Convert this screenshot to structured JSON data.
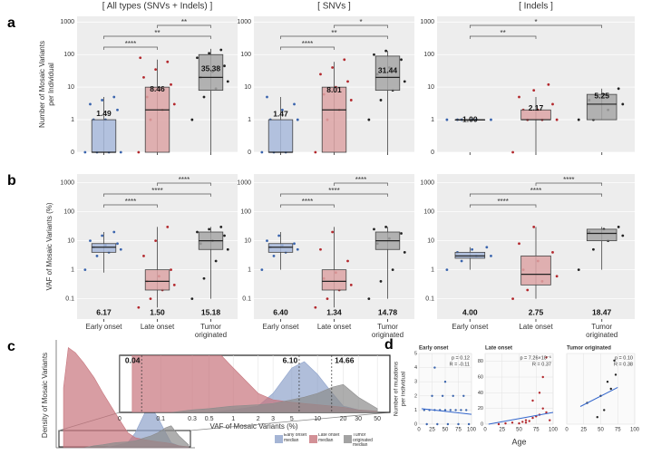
{
  "chart_data": [
    {
      "type": "box",
      "panel": "a",
      "title": "[ All types (SNVs + Indels) ]",
      "y_label": [
        "Number of Mosaic Variants",
        "per Individual"
      ],
      "yscale": "pseudo_log",
      "ylim": [
        0,
        1500
      ],
      "yticks": [
        0,
        1,
        10,
        100,
        1000
      ],
      "boxes": [
        {
          "color": "#3a64ad",
          "fill": "#a7b8db",
          "stats": [
            0,
            0,
            0,
            1,
            5
          ],
          "mean": 1.49,
          "points": [
            0,
            0,
            0,
            0,
            1,
            1,
            2,
            3,
            4,
            5
          ]
        },
        {
          "color": "#b3282d",
          "fill": "#dca3a5",
          "stats": [
            0,
            0,
            2,
            10,
            70
          ],
          "mean": 8.46,
          "points": [
            0,
            1,
            2,
            3,
            5,
            8,
            12,
            20,
            35,
            60,
            80
          ]
        },
        {
          "color": "#222222",
          "fill": "#a6a6a6",
          "stats": [
            0,
            8,
            20,
            100,
            150
          ],
          "mean": 35.38,
          "points": [
            1,
            5,
            9,
            15,
            20,
            30,
            45,
            80,
            110,
            140
          ]
        }
      ],
      "comparisons": [
        {
          "groups": [
            1,
            2
          ],
          "label": "**"
        },
        {
          "groups": [
            0,
            2
          ],
          "label": "**"
        },
        {
          "groups": [
            0,
            1
          ],
          "label": "****"
        }
      ]
    },
    {
      "type": "box",
      "title": "[ SNVs ]",
      "yscale": "pseudo_log",
      "ylim": [
        0,
        1500
      ],
      "yticks": [
        0,
        1,
        10,
        100,
        1000
      ],
      "boxes": [
        {
          "color": "#3a64ad",
          "fill": "#a7b8db",
          "stats": [
            0,
            0,
            0,
            1,
            5
          ],
          "mean": 1.47,
          "points": [
            0,
            0,
            0,
            1,
            1,
            2,
            3,
            5
          ]
        },
        {
          "color": "#b3282d",
          "fill": "#dca3a5",
          "stats": [
            0,
            0,
            2,
            10,
            60
          ],
          "mean": 8.01,
          "points": [
            0,
            1,
            2,
            4,
            6,
            10,
            15,
            25,
            40,
            70
          ]
        },
        {
          "color": "#222222",
          "fill": "#a6a6a6",
          "stats": [
            0,
            8,
            20,
            90,
            130
          ],
          "mean": 31.44,
          "points": [
            1,
            4,
            8,
            15,
            25,
            40,
            70,
            100,
            130
          ]
        }
      ],
      "comparisons": [
        {
          "groups": [
            1,
            2
          ],
          "label": "*"
        },
        {
          "groups": [
            0,
            2
          ],
          "label": "**"
        },
        {
          "groups": [
            0,
            1
          ],
          "label": "****"
        }
      ]
    },
    {
      "type": "box",
      "title": "[ Indels ]",
      "yscale": "pseudo_log",
      "ylim": [
        0,
        1500
      ],
      "yticks": [
        0,
        1,
        10,
        100,
        1000
      ],
      "boxes": [
        {
          "color": "#3a64ad",
          "fill": "#a7b8db",
          "stats": [
            1,
            1,
            1,
            1,
            1
          ],
          "mean": 1,
          "mean_label": "1.00",
          "points": [
            1,
            1,
            1,
            1,
            1,
            1
          ]
        },
        {
          "color": "#b3282d",
          "fill": "#dca3a5",
          "stats": [
            0,
            1,
            1,
            2,
            5
          ],
          "mean": 2.17,
          "points": [
            0,
            1,
            1,
            1,
            2,
            2,
            3,
            5,
            8,
            12
          ]
        },
        {
          "color": "#222222",
          "fill": "#a6a6a6",
          "stats": [
            1,
            1,
            3,
            6,
            9
          ],
          "mean": 5.25,
          "points": [
            1,
            1,
            2,
            3,
            4,
            6,
            9
          ]
        }
      ],
      "comparisons": [
        {
          "groups": [
            0,
            2
          ],
          "label": "*"
        },
        {
          "groups": [
            0,
            1
          ],
          "label": "**"
        }
      ]
    },
    {
      "type": "box",
      "panel": "b",
      "y_label": [
        "VAF of Mosaic Variants (%)"
      ],
      "yscale": "log",
      "ylim": [
        0.02,
        2000
      ],
      "yticks": [
        0.1,
        1,
        10,
        100,
        1000
      ],
      "categories": [
        "Early onset",
        "Late onset",
        "Tumor originated"
      ],
      "boxes": [
        {
          "color": "#3a64ad",
          "fill": "#a7b8db",
          "stats": [
            0.8,
            4,
            6,
            8,
            20
          ],
          "mean": 6.17,
          "points": [
            1,
            3,
            4,
            5,
            6,
            7,
            8,
            10,
            15,
            20
          ]
        },
        {
          "color": "#b3282d",
          "fill": "#dca3a5",
          "stats": [
            0.05,
            0.2,
            0.4,
            1,
            30
          ],
          "mean": 1.5,
          "mean_label": "1.50",
          "points": [
            0.05,
            0.1,
            0.2,
            0.3,
            0.4,
            0.6,
            1,
            3,
            10,
            30
          ]
        },
        {
          "color": "#222222",
          "fill": "#a6a6a6",
          "stats": [
            0.1,
            5,
            10,
            20,
            30
          ],
          "mean": 15.18,
          "points": [
            0.1,
            0.5,
            2,
            5,
            8,
            10,
            15,
            20,
            25,
            30
          ]
        }
      ],
      "comparisons": [
        {
          "groups": [
            1,
            2
          ],
          "label": "****"
        },
        {
          "groups": [
            0,
            2
          ],
          "label": "****"
        },
        {
          "groups": [
            0,
            1
          ],
          "label": "****"
        }
      ]
    },
    {
      "type": "box",
      "yscale": "log",
      "ylim": [
        0.02,
        2000
      ],
      "yticks": [
        0.1,
        1,
        10,
        100,
        1000
      ],
      "categories": [
        "Early onset",
        "Late onset",
        "Tumor originated"
      ],
      "boxes": [
        {
          "color": "#3a64ad",
          "fill": "#a7b8db",
          "stats": [
            1,
            4,
            6,
            8,
            20
          ],
          "mean": 6.4,
          "mean_label": "6.40",
          "points": [
            1,
            3,
            4,
            5,
            6,
            7,
            8,
            10,
            15
          ]
        },
        {
          "color": "#b3282d",
          "fill": "#dca3a5",
          "stats": [
            0.05,
            0.2,
            0.4,
            1,
            30
          ],
          "mean": 1.34,
          "points": [
            0.05,
            0.1,
            0.2,
            0.3,
            0.5,
            0.8,
            2,
            5,
            20
          ]
        },
        {
          "color": "#222222",
          "fill": "#a6a6a6",
          "stats": [
            0.1,
            5,
            10,
            20,
            30
          ],
          "mean": 14.78,
          "points": [
            0.1,
            0.4,
            1,
            4,
            8,
            12,
            18,
            25,
            30
          ]
        }
      ],
      "comparisons": [
        {
          "groups": [
            1,
            2
          ],
          "label": "****"
        },
        {
          "groups": [
            0,
            2
          ],
          "label": "****"
        },
        {
          "groups": [
            0,
            1
          ],
          "label": "****"
        }
      ]
    },
    {
      "type": "box",
      "yscale": "log",
      "ylim": [
        0.02,
        2000
      ],
      "yticks": [
        0.1,
        1,
        10,
        100,
        1000
      ],
      "categories": [
        "Early onset",
        "Late onset",
        "Tumor originated"
      ],
      "boxes": [
        {
          "color": "#3a64ad",
          "fill": "#a7b8db",
          "stats": [
            1,
            2.5,
            3,
            4,
            6
          ],
          "mean": 4,
          "mean_label": "4.00",
          "points": [
            1,
            2,
            3,
            3,
            4,
            5,
            6
          ]
        },
        {
          "color": "#b3282d",
          "fill": "#dca3a5",
          "stats": [
            0.1,
            0.3,
            0.7,
            3,
            30
          ],
          "mean": 2.75,
          "points": [
            0.1,
            0.2,
            0.4,
            0.6,
            1,
            2,
            4,
            8,
            30
          ]
        },
        {
          "color": "#222222",
          "fill": "#a6a6a6",
          "stats": [
            1,
            10,
            18,
            25,
            30
          ],
          "mean": 18.47,
          "points": [
            1,
            5,
            10,
            15,
            20,
            25,
            30
          ]
        }
      ],
      "comparisons": [
        {
          "groups": [
            1,
            2
          ],
          "label": "****"
        },
        {
          "groups": [
            0,
            2
          ],
          "label": "****"
        },
        {
          "groups": [
            0,
            1
          ],
          "label": "****"
        }
      ]
    },
    {
      "type": "density",
      "panel": "c",
      "y_label": "Density of Mosaic Variants",
      "x_label": "VAF of Mosaic Variants (%)",
      "xscale": "pseudo_log",
      "xlim": [
        0,
        70
      ],
      "xticks": [
        0,
        0.1,
        0.3,
        0.5,
        1,
        2,
        3,
        5,
        10,
        20,
        30,
        50
      ],
      "ylim": [
        0,
        1.05
      ],
      "zoom_ylim": [
        0,
        0.45
      ],
      "x": [
        0.02,
        0.04,
        0.08,
        0.15,
        0.3,
        0.5,
        1,
        2,
        3,
        5,
        7,
        10,
        15,
        20,
        30,
        50
      ],
      "series": [
        {
          "name": "Early onset median",
          "color": "#8ea2cb",
          "median": 6.1,
          "median_label": "6.10",
          "values": [
            0,
            0,
            0,
            0,
            0,
            0,
            0.02,
            0.05,
            0.15,
            0.35,
            0.4,
            0.3,
            0.15,
            0.05,
            0.02,
            0
          ]
        },
        {
          "name": "Late onset median",
          "color": "#c7747c",
          "median": 0.04,
          "median_label": "0.04",
          "values": [
            0.6,
            1,
            0.95,
            0.85,
            0.7,
            0.55,
            0.35,
            0.15,
            0.1,
            0.08,
            0.07,
            0.06,
            0.05,
            0.04,
            0.02,
            0.01
          ]
        },
        {
          "name": "Tumor originated median",
          "color": "#8c8c8c",
          "median": 14.66,
          "median_label": "14.66",
          "values": [
            0,
            0,
            0,
            0,
            0.02,
            0.03,
            0.05,
            0.06,
            0.07,
            0.1,
            0.12,
            0.15,
            0.2,
            0.22,
            0.12,
            0.03
          ]
        }
      ]
    },
    {
      "type": "scatter",
      "panel": "d",
      "title": "Early onset",
      "y_label": [
        "Number of mutations",
        "per individual"
      ],
      "xlim": [
        0,
        100
      ],
      "xticks": [
        0,
        25,
        50,
        75,
        100
      ],
      "ylim": [
        0,
        5
      ],
      "yticks": [
        0,
        1,
        2,
        3,
        4,
        5
      ],
      "color": "#3a64ad",
      "x": [
        10,
        20,
        30,
        40,
        50,
        60,
        70,
        80,
        90,
        15,
        35,
        55,
        75,
        95,
        25,
        45,
        65,
        85,
        50,
        30
      ],
      "y": [
        1,
        1,
        1,
        1,
        1,
        1,
        1,
        1,
        1,
        0,
        0,
        0,
        0,
        0,
        2,
        2,
        2,
        2,
        3,
        4
      ],
      "fit": {
        "x": [
          5,
          100
        ],
        "y": [
          1.1,
          0.7
        ]
      },
      "annotation": [
        "p = 0.12",
        "R = -0.11"
      ]
    },
    {
      "type": "scatter",
      "title": "Late onset",
      "x_label": "Age",
      "xlim": [
        0,
        100
      ],
      "xticks": [
        0,
        25,
        50,
        75,
        100
      ],
      "ylim": [
        0,
        90
      ],
      "yticks": [
        0,
        20,
        40,
        60,
        80
      ],
      "color": "#b3282d",
      "x": [
        20,
        30,
        40,
        50,
        55,
        60,
        65,
        70,
        75,
        80,
        85,
        90,
        95,
        70,
        80,
        85,
        90,
        60
      ],
      "y": [
        0,
        1,
        2,
        1,
        3,
        5,
        4,
        8,
        10,
        12,
        20,
        15,
        5,
        30,
        40,
        60,
        85,
        2
      ],
      "fit": {
        "x": [
          5,
          100
        ],
        "y": [
          0,
          15
        ]
      },
      "annotation": [
        "p = 7.26×10⁻⁶",
        "R = 0.37"
      ]
    },
    {
      "type": "scatter",
      "title": "Tumor originated",
      "xlim": [
        0,
        100
      ],
      "xticks": [
        0,
        25,
        50,
        75,
        100
      ],
      "ylim": [
        0,
        10
      ],
      "color": "#222222",
      "x": [
        30,
        45,
        50,
        55,
        60,
        65,
        70,
        72
      ],
      "y": [
        3,
        1,
        4,
        2,
        6,
        5,
        9,
        7
      ],
      "fit": {
        "x": [
          20,
          75
        ],
        "y": [
          2.5,
          5.2
        ]
      },
      "annotation": [
        "p = 0.10",
        "R = 0.38"
      ]
    }
  ]
}
